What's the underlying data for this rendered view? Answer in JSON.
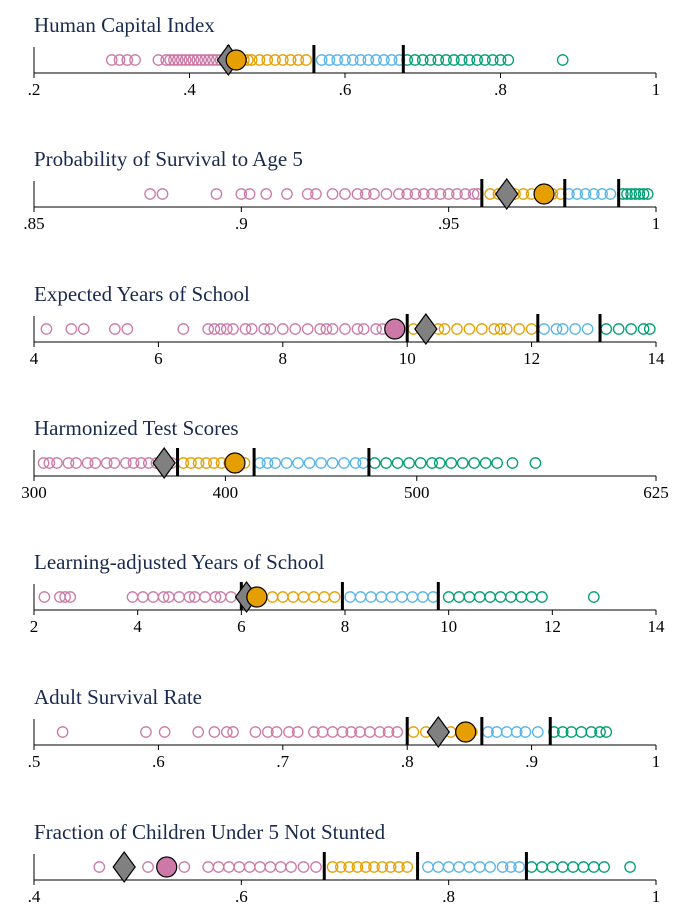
{
  "colors": {
    "q1": "#cc79a7",
    "q2": "#e69f00",
    "q3": "#56b4e9",
    "q4": "#009e73",
    "diamond": "#808080",
    "axis": "#000000",
    "title": "#1a2a4e"
  },
  "chart_data": [
    {
      "type": "scatter",
      "title": "Human Capital Index",
      "xlim": [
        0.2,
        1.0
      ],
      "ticks": [
        0.2,
        0.4,
        0.6,
        0.8,
        1.0
      ],
      "tick_labels": [
        ".2",
        ".4",
        ".6",
        ".8",
        "1"
      ],
      "thresholds": [
        0.45,
        0.56,
        0.675
      ],
      "diamond": 0.45,
      "circle": 0.46,
      "circle_color": "q2",
      "points": [
        0.3,
        0.31,
        0.32,
        0.33,
        0.36,
        0.37,
        0.375,
        0.38,
        0.385,
        0.39,
        0.395,
        0.4,
        0.405,
        0.41,
        0.415,
        0.42,
        0.425,
        0.43,
        0.435,
        0.44,
        0.47,
        0.475,
        0.48,
        0.49,
        0.5,
        0.51,
        0.52,
        0.53,
        0.54,
        0.55,
        0.57,
        0.58,
        0.59,
        0.6,
        0.61,
        0.62,
        0.63,
        0.64,
        0.65,
        0.66,
        0.67,
        0.68,
        0.69,
        0.7,
        0.71,
        0.72,
        0.73,
        0.74,
        0.75,
        0.76,
        0.77,
        0.78,
        0.79,
        0.8,
        0.81,
        0.88
      ]
    },
    {
      "type": "scatter",
      "title": "Probability of Survival to Age 5",
      "xlim": [
        0.85,
        1.0
      ],
      "ticks": [
        0.85,
        0.9,
        0.95,
        1.0
      ],
      "tick_labels": [
        ".85",
        ".9",
        ".95",
        "1"
      ],
      "thresholds": [
        0.958,
        0.978,
        0.991
      ],
      "diamond": 0.964,
      "circle": 0.973,
      "circle_color": "q2",
      "points": [
        0.878,
        0.881,
        0.894,
        0.9,
        0.902,
        0.906,
        0.911,
        0.916,
        0.918,
        0.922,
        0.925,
        0.928,
        0.93,
        0.932,
        0.935,
        0.938,
        0.94,
        0.942,
        0.944,
        0.946,
        0.948,
        0.95,
        0.952,
        0.954,
        0.956,
        0.957,
        0.96,
        0.962,
        0.966,
        0.968,
        0.97,
        0.972,
        0.975,
        0.977,
        0.979,
        0.981,
        0.983,
        0.985,
        0.987,
        0.989,
        0.992,
        0.993,
        0.994,
        0.995,
        0.996,
        0.997,
        0.998
      ]
    },
    {
      "type": "scatter",
      "title": "Expected Years of School",
      "xlim": [
        4,
        14
      ],
      "ticks": [
        4,
        6,
        8,
        10,
        12,
        14
      ],
      "tick_labels": [
        "4",
        "6",
        "8",
        "10",
        "12",
        "14"
      ],
      "thresholds": [
        10.0,
        12.1,
        13.1
      ],
      "diamond": 10.3,
      "circle": 9.8,
      "circle_color": "q1",
      "points": [
        4.2,
        4.6,
        4.8,
        5.3,
        5.5,
        6.4,
        6.8,
        6.9,
        7.0,
        7.1,
        7.2,
        7.4,
        7.5,
        7.7,
        7.8,
        8.0,
        8.2,
        8.4,
        8.6,
        8.7,
        8.8,
        9.0,
        9.2,
        9.3,
        9.5,
        9.6,
        10.1,
        10.5,
        10.6,
        10.8,
        11.0,
        11.2,
        11.4,
        11.5,
        11.6,
        11.8,
        12.0,
        12.2,
        12.4,
        12.5,
        12.7,
        12.9,
        13.2,
        13.4,
        13.6,
        13.8,
        13.9
      ]
    },
    {
      "type": "scatter",
      "title": "Harmonized Test Scores",
      "xlim": [
        300,
        625
      ],
      "ticks": [
        300,
        400,
        500,
        625
      ],
      "tick_labels": [
        "300",
        "400",
        "500",
        "625"
      ],
      "thresholds": [
        375,
        415,
        475
      ],
      "diamond": 368,
      "circle": 405,
      "circle_color": "q2",
      "points": [
        305,
        308,
        312,
        318,
        322,
        328,
        332,
        338,
        342,
        348,
        352,
        356,
        360,
        364,
        372,
        378,
        382,
        386,
        390,
        394,
        398,
        402,
        410,
        418,
        422,
        426,
        432,
        438,
        444,
        450,
        456,
        462,
        468,
        472,
        478,
        484,
        490,
        496,
        502,
        508,
        512,
        518,
        524,
        530,
        536,
        542,
        550,
        562
      ]
    },
    {
      "type": "scatter",
      "title": "Learning-adjusted Years of School",
      "xlim": [
        2,
        14
      ],
      "ticks": [
        2,
        4,
        6,
        8,
        10,
        12,
        14
      ],
      "tick_labels": [
        "2",
        "4",
        "6",
        "8",
        "10",
        "12",
        "14"
      ],
      "thresholds": [
        6.0,
        7.95,
        9.8
      ],
      "diamond": 6.1,
      "circle": 6.3,
      "circle_color": "q2",
      "points": [
        2.2,
        2.5,
        2.6,
        2.7,
        3.9,
        4.1,
        4.3,
        4.5,
        4.6,
        4.8,
        5.0,
        5.1,
        5.3,
        5.5,
        5.6,
        5.8,
        6.6,
        6.8,
        7.0,
        7.2,
        7.4,
        7.6,
        7.8,
        8.1,
        8.3,
        8.5,
        8.7,
        8.9,
        9.1,
        9.3,
        9.5,
        9.7,
        10.0,
        10.2,
        10.4,
        10.6,
        10.8,
        11.0,
        11.2,
        11.4,
        11.6,
        11.8,
        12.8
      ]
    },
    {
      "type": "scatter",
      "title": "Adult Survival Rate",
      "xlim": [
        0.5,
        1.0
      ],
      "ticks": [
        0.5,
        0.6,
        0.7,
        0.8,
        0.9,
        1.0
      ],
      "tick_labels": [
        ".5",
        ".6",
        ".7",
        ".8",
        ".9",
        "1"
      ],
      "thresholds": [
        0.8,
        0.86,
        0.915
      ],
      "diamond": 0.825,
      "circle": 0.847,
      "circle_color": "q2",
      "points": [
        0.523,
        0.59,
        0.605,
        0.632,
        0.645,
        0.655,
        0.66,
        0.678,
        0.688,
        0.695,
        0.705,
        0.712,
        0.725,
        0.732,
        0.74,
        0.748,
        0.755,
        0.762,
        0.77,
        0.778,
        0.785,
        0.792,
        0.805,
        0.815,
        0.835,
        0.852,
        0.865,
        0.872,
        0.88,
        0.888,
        0.895,
        0.905,
        0.918,
        0.925,
        0.932,
        0.94,
        0.948,
        0.955,
        0.96
      ]
    },
    {
      "type": "scatter",
      "title": "Fraction of Children Under 5 Not Stunted",
      "xlim": [
        0.4,
        1.0
      ],
      "ticks": [
        0.4,
        0.6,
        0.8,
        1.0
      ],
      "tick_labels": [
        ".4",
        ".6",
        ".8",
        "1"
      ],
      "thresholds": [
        0.68,
        0.77,
        0.875
      ],
      "diamond": 0.487,
      "circle": 0.528,
      "circle_color": "q1",
      "points": [
        0.463,
        0.51,
        0.545,
        0.568,
        0.578,
        0.588,
        0.598,
        0.608,
        0.618,
        0.628,
        0.638,
        0.648,
        0.66,
        0.672,
        0.688,
        0.696,
        0.704,
        0.712,
        0.72,
        0.728,
        0.736,
        0.744,
        0.752,
        0.76,
        0.78,
        0.79,
        0.8,
        0.81,
        0.82,
        0.83,
        0.84,
        0.852,
        0.86,
        0.868,
        0.88,
        0.89,
        0.9,
        0.91,
        0.92,
        0.93,
        0.94,
        0.95,
        0.975
      ]
    }
  ]
}
